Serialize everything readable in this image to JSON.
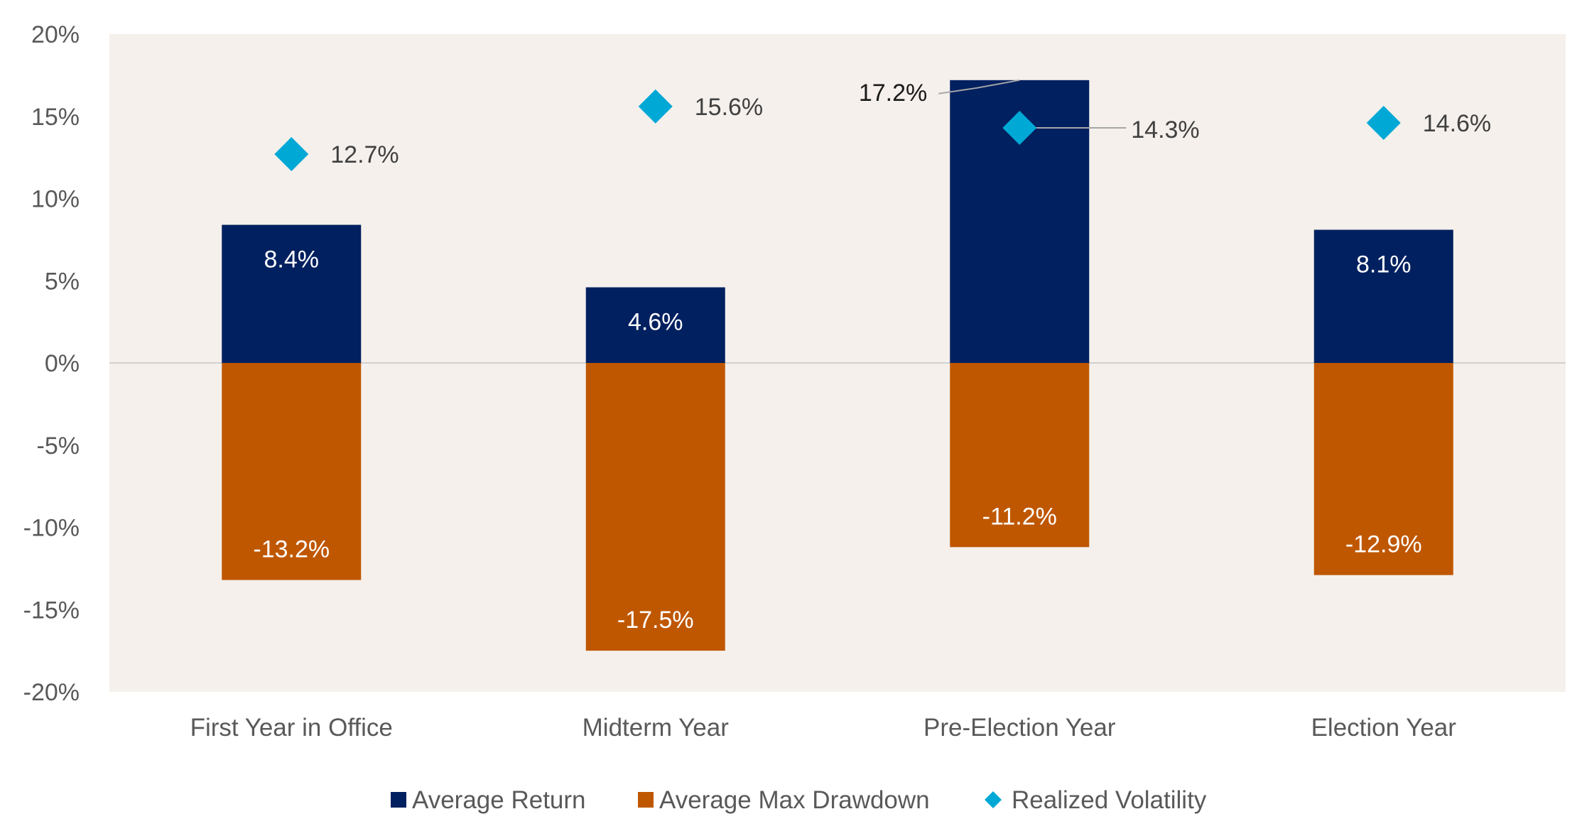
{
  "chart_data": {
    "type": "bar",
    "categories": [
      "First Year in Office",
      "Midterm Year",
      "Pre-Election Year",
      "Election Year"
    ],
    "series": [
      {
        "name": "Average Return",
        "kind": "bar",
        "color": "#002060",
        "values": [
          8.4,
          4.6,
          17.2,
          8.1
        ],
        "labels": [
          "8.4%",
          "4.6%",
          "17.2%",
          "8.1%"
        ]
      },
      {
        "name": "Average Max Drawdown",
        "kind": "bar",
        "color": "#BF5700",
        "values": [
          -13.2,
          -17.5,
          -11.2,
          -12.9
        ],
        "labels": [
          "-13.2%",
          "-17.5%",
          "-11.2%",
          "-12.9%"
        ]
      },
      {
        "name": "Realized Volatility",
        "kind": "marker",
        "marker": "diamond",
        "color": "#00A8D6",
        "values": [
          12.7,
          15.6,
          14.3,
          14.6
        ],
        "labels": [
          "12.7%",
          "15.6%",
          "14.3%",
          "14.6%"
        ]
      }
    ],
    "y_ticks": [
      "20%",
      "15%",
      "10%",
      "5%",
      "0%",
      "-5%",
      "-10%",
      "-15%",
      "-20%"
    ],
    "ylim": [
      -20,
      20
    ],
    "grid": false,
    "plot_background": "#F5F0EC",
    "legend_position": "bottom",
    "title": "",
    "xlabel": "",
    "ylabel": ""
  }
}
